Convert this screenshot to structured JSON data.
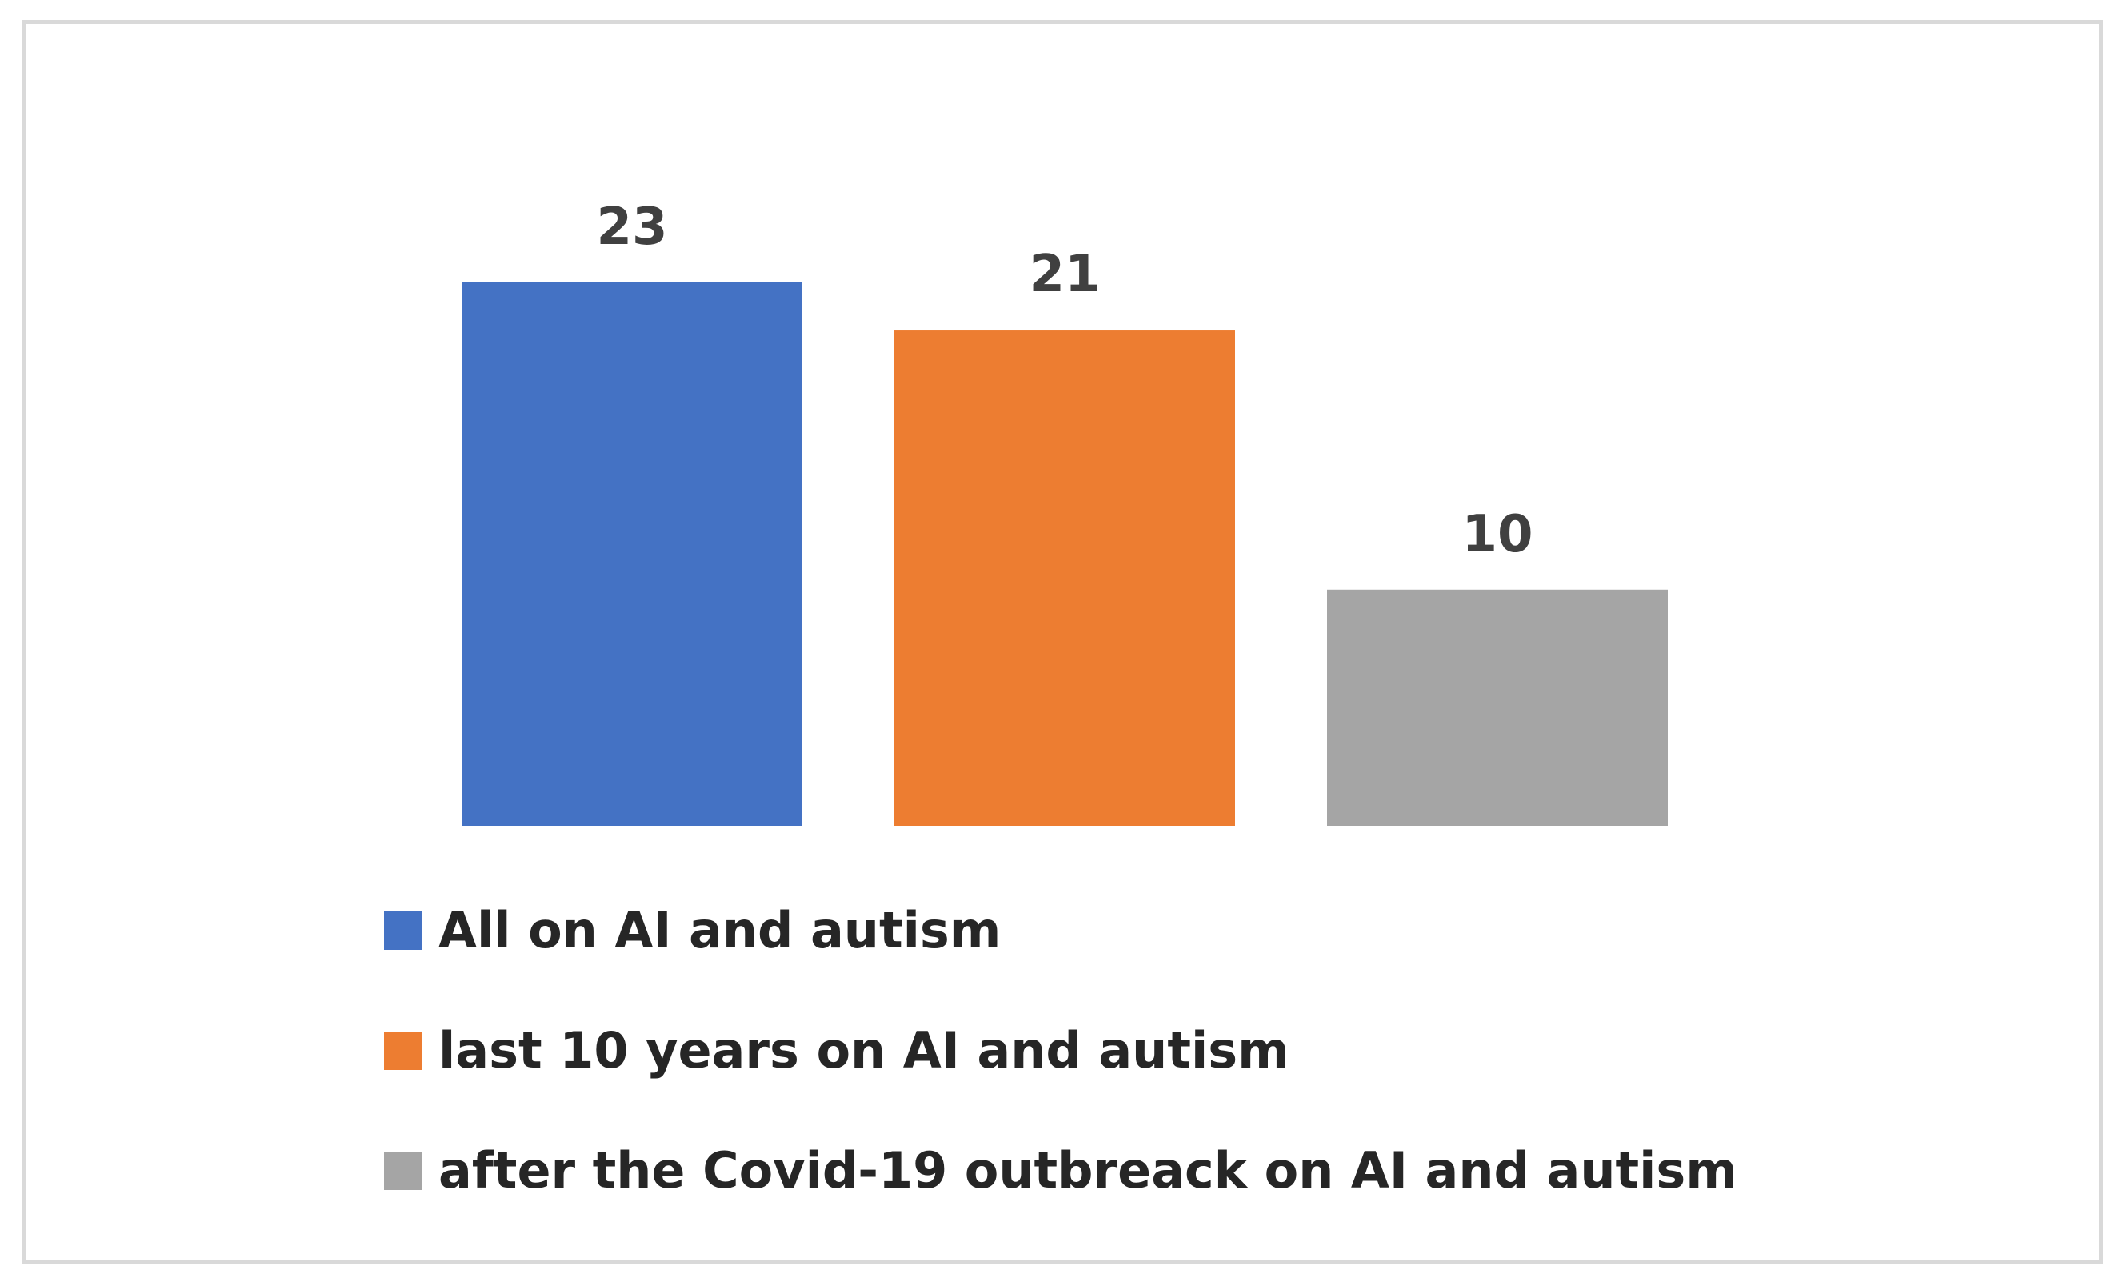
{
  "chart_data": {
    "type": "bar",
    "categories": [
      "All on AI and autism",
      "last 10 years on AI and autism",
      "after the Covid-19 outbreack on AI and autism"
    ],
    "values": [
      23,
      21,
      10
    ],
    "colors": [
      "#4472c4",
      "#ed7d31",
      "#a5a5a5"
    ],
    "data_label_color": "#404040",
    "ylim": [
      0,
      23
    ],
    "grid": false,
    "axes_visible": false,
    "legend_position": "bottom",
    "legend": [
      {
        "label": "All on AI and autism",
        "color": "#4472c4"
      },
      {
        "label": "last 10 years on AI and autism",
        "color": "#ed7d31"
      },
      {
        "label": "after the Covid-19 outbreack on AI and autism",
        "color": "#a5a5a5"
      }
    ],
    "border_color": "#d9d9d9"
  }
}
